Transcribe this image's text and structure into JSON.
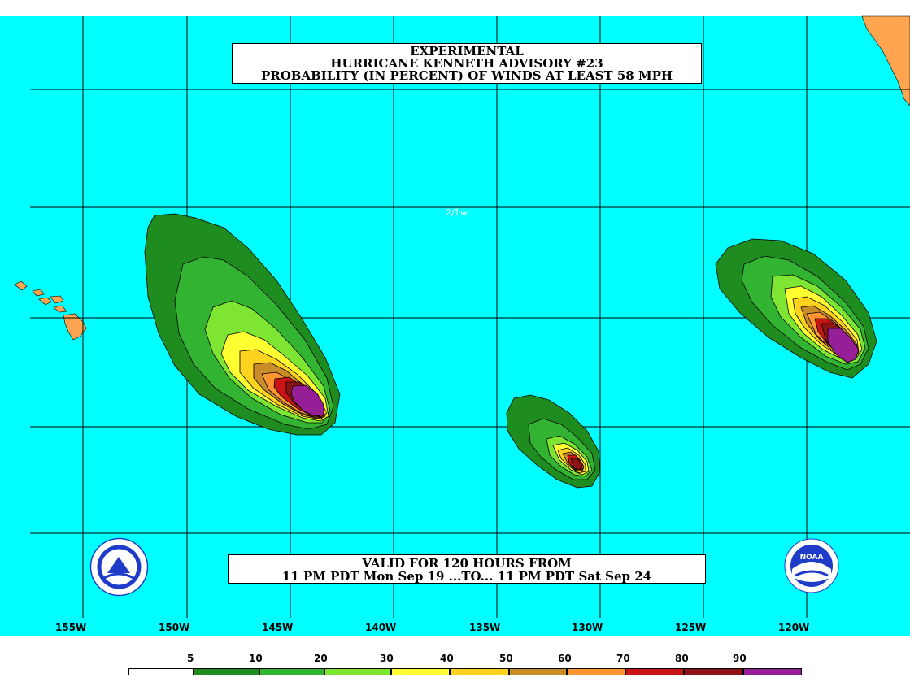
{
  "title": {
    "line1": "EXPERIMENTAL",
    "line2": "HURRICANE KENNETH ADVISORY #23",
    "line3": "PROBABILITY (IN PERCENT) OF WINDS AT LEAST 58 MPH"
  },
  "valid": {
    "line1": "VALID FOR 120 HOURS FROM",
    "line2": "11 PM PDT Mon Sep 19 ...TO... 11 PM PDT Sat Sep 24"
  },
  "marker": "2/1w",
  "longitudes": [
    "155W",
    "150W",
    "145W",
    "140W",
    "135W",
    "130W",
    "125W",
    "120W"
  ],
  "legend": {
    "thresholds": [
      "5",
      "10",
      "20",
      "30",
      "40",
      "50",
      "60",
      "70",
      "80",
      "90"
    ],
    "colors": [
      "#ffffff",
      "#1e8c1e",
      "#32b432",
      "#7ee632",
      "#ffff32",
      "#ffd21e",
      "#c88c28",
      "#ff9632",
      "#c81414",
      "#8c1414",
      "#961e96"
    ]
  },
  "colors": {
    "ocean": "#00ffff",
    "land": "#ffa54f"
  },
  "logos": {
    "left": "nws-logo-icon",
    "right": "noaa-logo-icon"
  }
}
